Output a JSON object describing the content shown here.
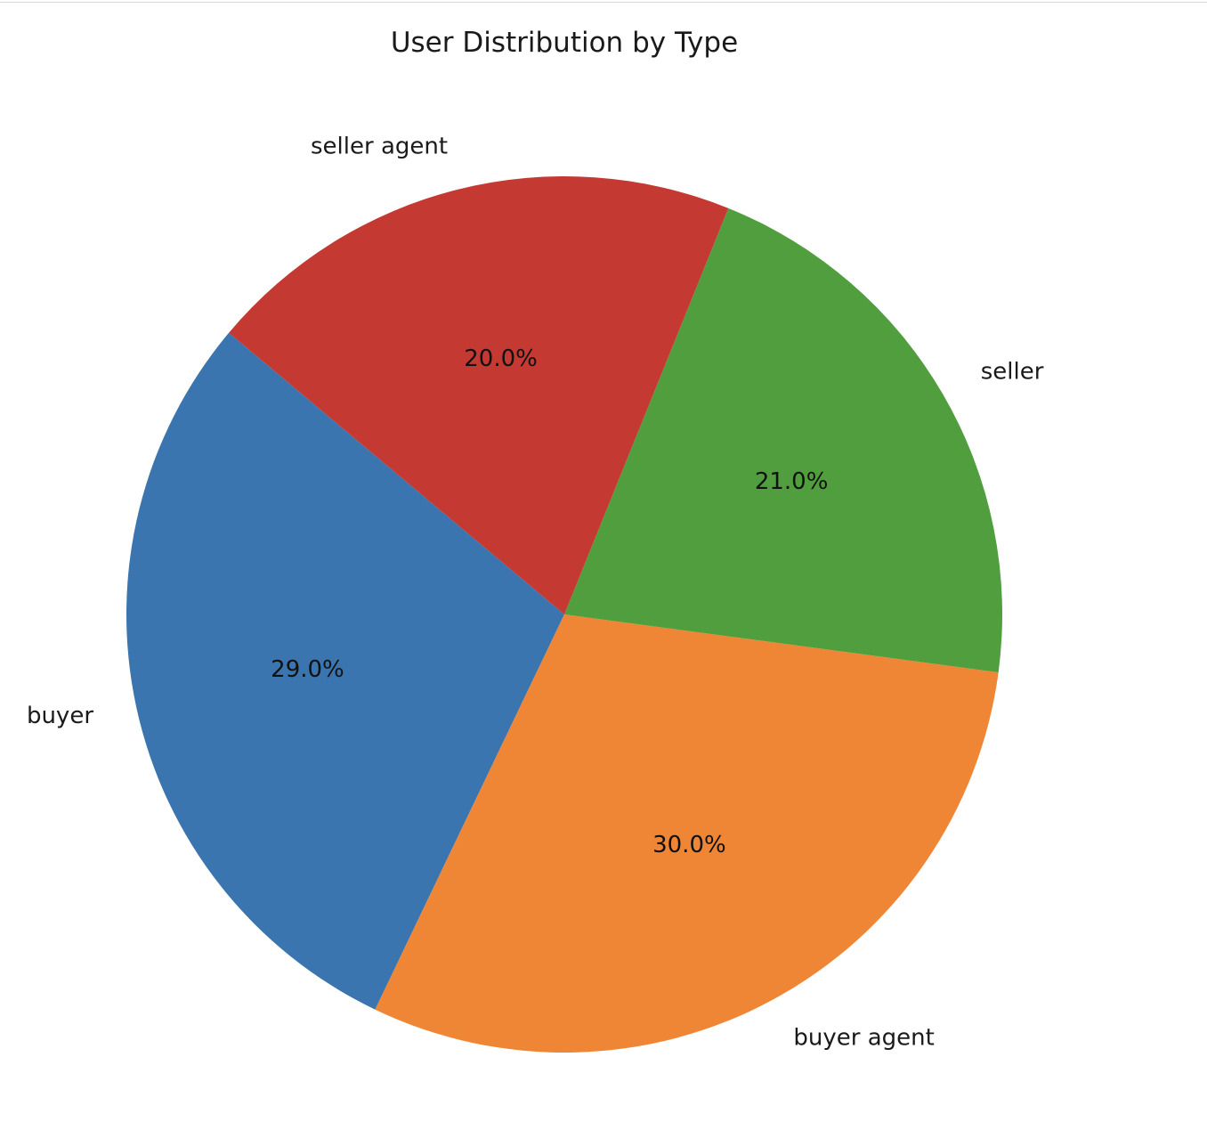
{
  "chart_data": {
    "type": "pie",
    "title": "User Distribution by Type",
    "start_angle_deg": 140,
    "direction": "counterclockwise",
    "slices": [
      {
        "label": "buyer",
        "value": 29.0,
        "pct_text": "29.0%",
        "color": "#3b75af"
      },
      {
        "label": "buyer agent",
        "value": 30.0,
        "pct_text": "30.0%",
        "color": "#ef8636"
      },
      {
        "label": "seller",
        "value": 21.0,
        "pct_text": "21.0%",
        "color": "#519e3e"
      },
      {
        "label": "seller agent",
        "value": 20.0,
        "pct_text": "20.0%",
        "color": "#c43932"
      }
    ]
  }
}
